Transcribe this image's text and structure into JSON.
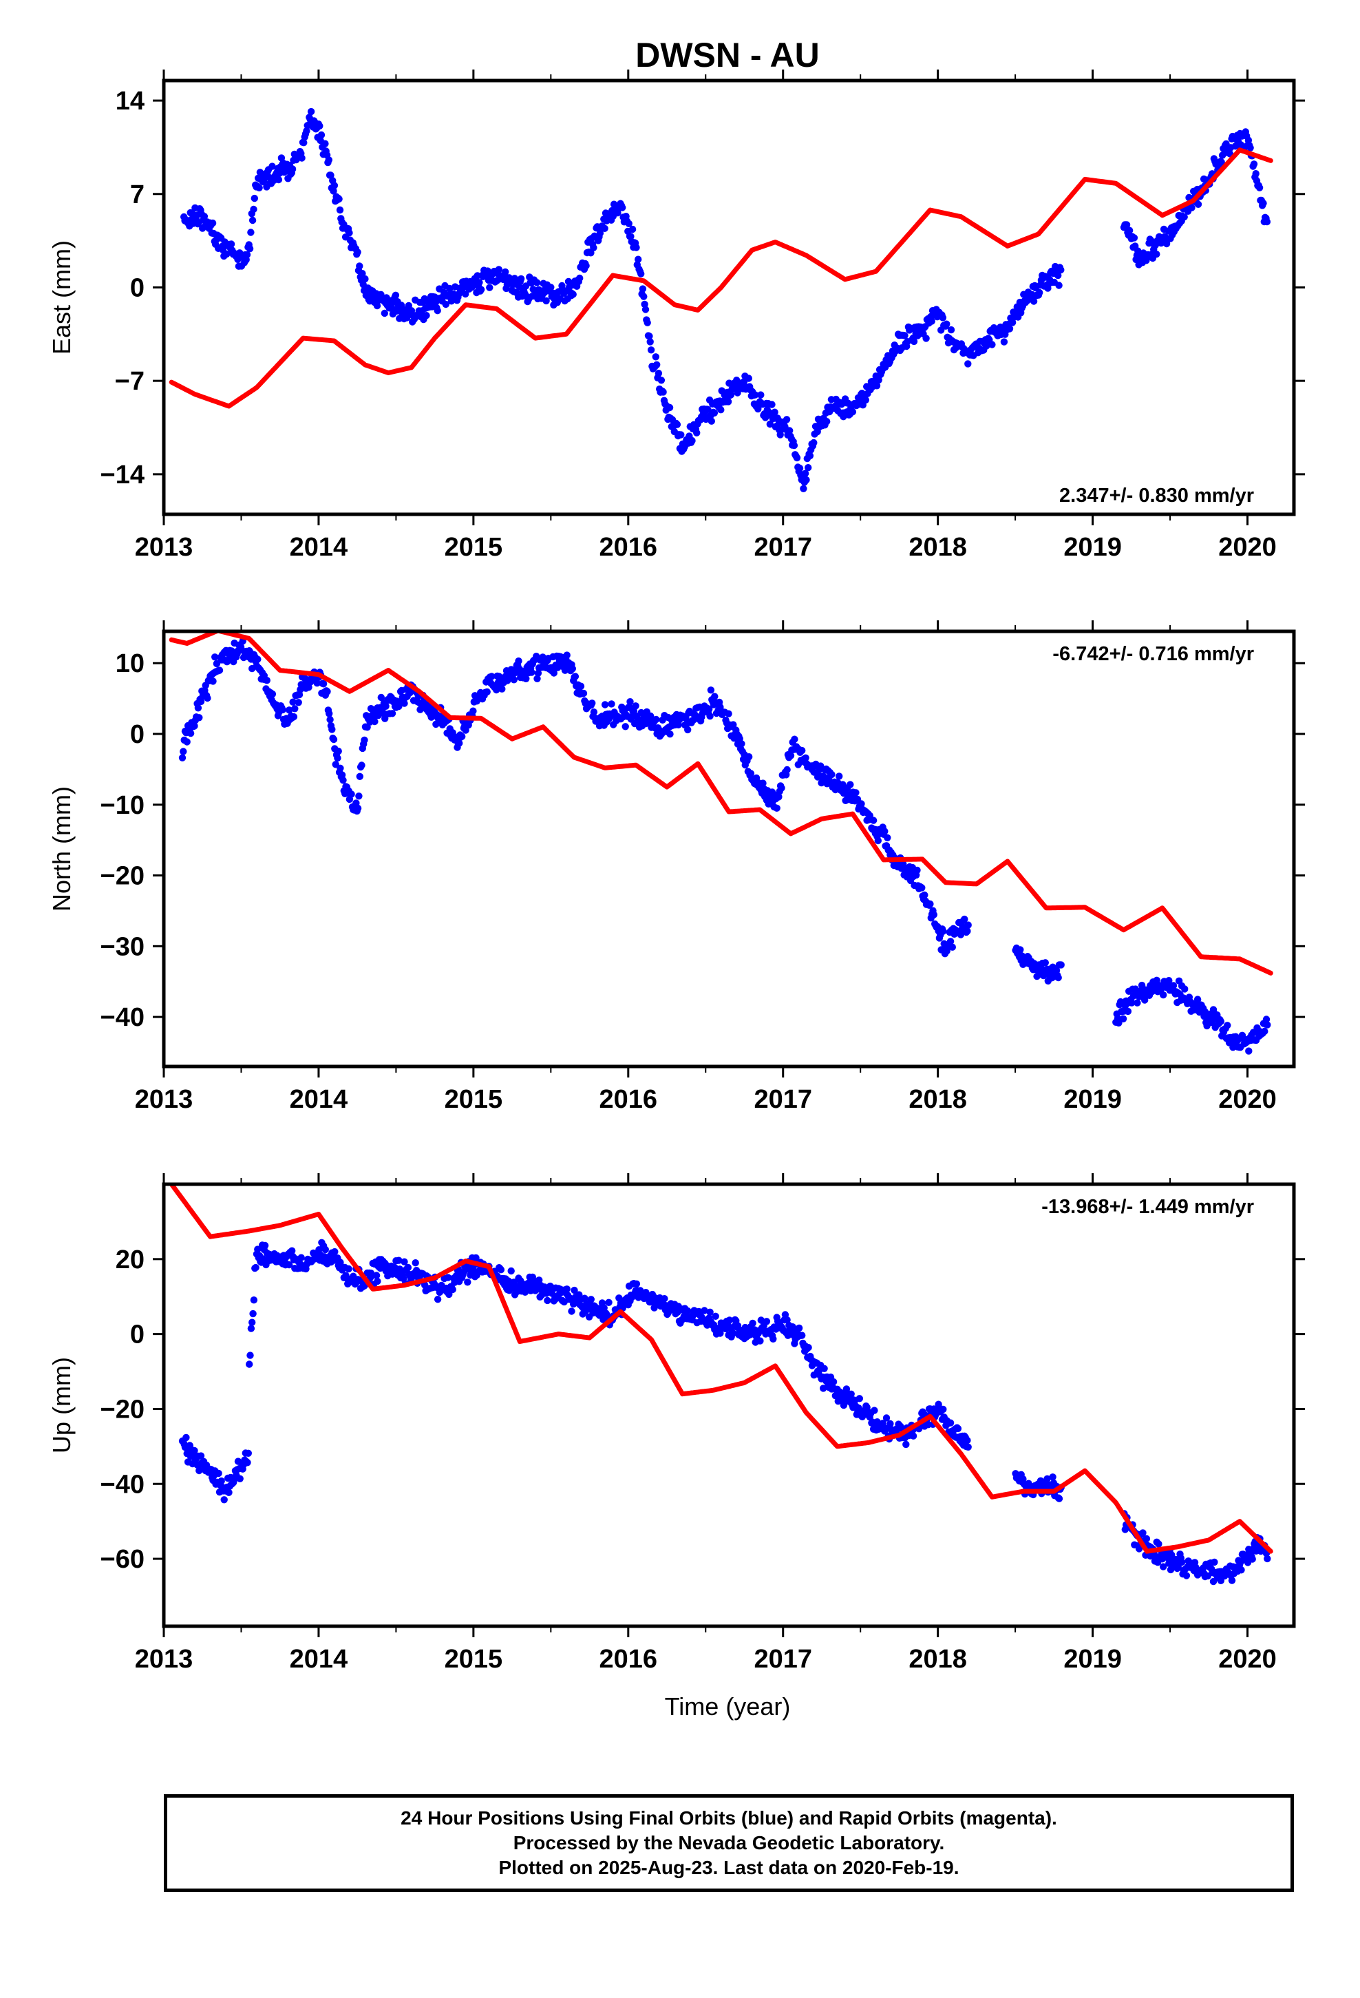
{
  "title": "DWSN - AU",
  "xlabel": "Time (year)",
  "colors": {
    "points": "#0000ff",
    "model": "#ff0000",
    "frame": "#000000"
  },
  "footer": {
    "line1": "24 Hour Positions Using Final Orbits (blue) and Rapid Orbits (magenta).",
    "line2": "Processed by the Nevada Geodetic Laboratory.",
    "line3": "Plotted on 2025-Aug-23. Last data on 2020-Feb-19."
  },
  "chart_data": [
    {
      "type": "scatter",
      "ylabel": "East (mm)",
      "rate_label": "2.347+/- 0.830 mm/yr",
      "rate_position": "bottom-right",
      "xlim": [
        2013.0,
        2020.3
      ],
      "ylim": [
        -17,
        15.5
      ],
      "xticks": [
        "2013",
        "2014",
        "2015",
        "2016",
        "2017",
        "2018",
        "2019",
        "2020"
      ],
      "yticks": [
        "14",
        "7",
        "0",
        "−7",
        "−14"
      ],
      "ytick_values": [
        14,
        7,
        0,
        -7,
        -14
      ],
      "series": [
        {
          "kind": "points",
          "x": [
            2013.13,
            2013.2,
            2013.3,
            2013.4,
            2013.5,
            2013.55,
            2013.6,
            2013.7,
            2013.8,
            2013.9,
            2013.95,
            2014.05,
            2014.1,
            2014.2,
            2014.3,
            2014.4,
            2014.6,
            2014.8,
            2014.95,
            2015.1,
            2015.3,
            2015.5,
            2015.65,
            2015.75,
            2015.85,
            2015.95,
            2016.05,
            2016.15,
            2016.25,
            2016.35,
            2016.45,
            2016.55,
            2016.65,
            2016.75,
            2016.85,
            2016.95,
            2017.05,
            2017.13,
            2017.2,
            2017.3,
            2017.45,
            2017.6,
            2017.75,
            2017.9,
            2018.0,
            2018.1,
            2018.2,
            2018.45,
            2018.55,
            2018.65,
            2018.75,
            2018.8,
            2019.2,
            2019.3,
            2019.4,
            2019.5,
            2019.6,
            2019.7,
            2019.8,
            2019.9,
            2020.0,
            2020.05,
            2020.1,
            2020.13
          ],
          "y": [
            5,
            5.5,
            4.5,
            3,
            2,
            3,
            8,
            8.5,
            9,
            10.5,
            13,
            10,
            7,
            4,
            0,
            -1,
            -2,
            -1,
            0,
            1,
            0,
            -0.5,
            0,
            3,
            5,
            6,
            3,
            -5,
            -9,
            -12,
            -10,
            -9,
            -8,
            -7,
            -9,
            -10,
            -11,
            -15,
            -11,
            -9,
            -9,
            -7,
            -4,
            -3,
            -2,
            -4,
            -5,
            -3,
            -1,
            0,
            1,
            1,
            5,
            2,
            3,
            4,
            6,
            7,
            9,
            11,
            11,
            9,
            6,
            4
          ]
        },
        {
          "kind": "line",
          "x": [
            2013.05,
            2013.2,
            2013.42,
            2013.6,
            2013.9,
            2014.1,
            2014.3,
            2014.45,
            2014.6,
            2014.75,
            2014.95,
            2015.15,
            2015.4,
            2015.6,
            2015.9,
            2016.1,
            2016.3,
            2016.45,
            2016.6,
            2016.8,
            2016.95,
            2017.15,
            2017.4,
            2017.6,
            2017.95,
            2018.15,
            2018.45,
            2018.65,
            2018.95,
            2019.15,
            2019.45,
            2019.65,
            2019.95,
            2020.15
          ],
          "y": [
            -7.1,
            -8,
            -8.9,
            -7.5,
            -3.8,
            -4,
            -5.8,
            -6.4,
            -6,
            -3.8,
            -1.3,
            -1.6,
            -3.8,
            -3.5,
            0.9,
            0.5,
            -1.3,
            -1.7,
            0,
            2.8,
            3.4,
            2.4,
            0.6,
            1.2,
            5.8,
            5.3,
            3.1,
            4,
            8.1,
            7.8,
            5.4,
            6.5,
            10.3,
            9.5
          ]
        }
      ]
    },
    {
      "type": "scatter",
      "ylabel": "North (mm)",
      "rate_label": "-6.742+/- 0.716 mm/yr",
      "rate_position": "top-right",
      "xlim": [
        2013.0,
        2020.3
      ],
      "ylim": [
        -47,
        14.5
      ],
      "xticks": [
        "2013",
        "2014",
        "2015",
        "2016",
        "2017",
        "2018",
        "2019",
        "2020"
      ],
      "yticks": [
        "10",
        "0",
        "−10",
        "−20",
        "−30",
        "−40"
      ],
      "ytick_values": [
        10,
        0,
        -10,
        -20,
        -30,
        -40
      ],
      "series": [
        {
          "kind": "points",
          "x": [
            2013.12,
            2013.2,
            2013.3,
            2013.4,
            2013.5,
            2013.6,
            2013.7,
            2013.8,
            2013.9,
            2014.0,
            2014.05,
            2014.1,
            2014.15,
            2014.2,
            2014.25,
            2014.3,
            2014.45,
            2014.6,
            2014.7,
            2014.8,
            2014.9,
            2015.0,
            2015.1,
            2015.3,
            2015.5,
            2015.6,
            2015.65,
            2015.8,
            2016.0,
            2016.2,
            2016.4,
            2016.55,
            2016.7,
            2016.8,
            2016.95,
            2017.05,
            2017.2,
            2017.35,
            2017.5,
            2017.65,
            2017.75,
            2017.85,
            2017.95,
            2018.05,
            2018.1,
            2018.2,
            2018.5,
            2018.7,
            2018.8,
            2019.15,
            2019.25,
            2019.4,
            2019.5,
            2019.6,
            2019.7,
            2019.8,
            2019.9,
            2020.0,
            2020.1,
            2020.13
          ],
          "y": [
            -2,
            2,
            8,
            11,
            12,
            10,
            5,
            2,
            7,
            8,
            6,
            -2,
            -6,
            -9,
            -11,
            2,
            4,
            6,
            4,
            2,
            -1,
            4,
            7,
            9,
            10,
            10,
            8,
            2,
            3,
            1,
            2,
            5,
            0,
            -6,
            -10,
            -2,
            -5,
            -7,
            -10,
            -15,
            -18,
            -20,
            -25,
            -30,
            -28,
            -27,
            -31,
            -34,
            -33,
            -40,
            -37,
            -36,
            -36,
            -37,
            -39,
            -41,
            -43,
            -44,
            -42,
            -41
          ]
        },
        {
          "kind": "line",
          "x": [
            2013.05,
            2013.15,
            2013.35,
            2013.55,
            2013.75,
            2014.0,
            2014.2,
            2014.45,
            2014.65,
            2014.85,
            2015.05,
            2015.25,
            2015.45,
            2015.65,
            2015.85,
            2016.05,
            2016.25,
            2016.45,
            2016.65,
            2016.85,
            2017.05,
            2017.25,
            2017.45,
            2017.65,
            2017.9,
            2018.05,
            2018.25,
            2018.45,
            2018.7,
            2018.95,
            2019.2,
            2019.45,
            2019.7,
            2019.95,
            2020.15
          ],
          "y": [
            13.3,
            12.8,
            14.6,
            13.5,
            9,
            8.4,
            6,
            9,
            6,
            2.3,
            2.2,
            -0.7,
            1,
            -3.3,
            -4.8,
            -4.4,
            -7.5,
            -4.2,
            -11,
            -10.7,
            -14.1,
            -12,
            -11.3,
            -17.8,
            -17.7,
            -21,
            -21.2,
            -18,
            -24.6,
            -24.5,
            -27.7,
            -24.6,
            -31.5,
            -31.8,
            -33.8
          ]
        }
      ]
    },
    {
      "type": "scatter",
      "ylabel": "Up (mm)",
      "rate_label": "-13.968+/- 1.449 mm/yr",
      "rate_position": "top-right",
      "xlim": [
        2013.0,
        2020.3
      ],
      "ylim": [
        -78,
        40
      ],
      "xticks": [
        "2013",
        "2014",
        "2015",
        "2016",
        "2017",
        "2018",
        "2019",
        "2020"
      ],
      "yticks": [
        "20",
        "0",
        "−20",
        "−40",
        "−60"
      ],
      "ytick_values": [
        20,
        0,
        -20,
        -40,
        -60
      ],
      "series": [
        {
          "kind": "points",
          "x": [
            2013.12,
            2013.2,
            2013.3,
            2013.4,
            2013.5,
            2013.55,
            2013.55,
            2013.6,
            2013.7,
            2013.8,
            2013.9,
            2014.0,
            2014.1,
            2014.2,
            2014.3,
            2014.4,
            2014.6,
            2014.8,
            2015.0,
            2015.2,
            2015.4,
            2015.6,
            2015.75,
            2015.9,
            2016.05,
            2016.2,
            2016.4,
            2016.6,
            2016.8,
            2017.0,
            2017.1,
            2017.2,
            2017.35,
            2017.5,
            2017.65,
            2017.8,
            2017.9,
            2018.0,
            2018.1,
            2018.2,
            2018.5,
            2018.6,
            2018.75,
            2018.8,
            2019.2,
            2019.3,
            2019.4,
            2019.5,
            2019.6,
            2019.7,
            2019.8,
            2019.9,
            2020.0,
            2020.05,
            2020.13
          ],
          "y": [
            -30,
            -33,
            -37,
            -42,
            -35,
            -33,
            -8,
            22,
            20,
            20,
            18,
            22,
            20,
            15,
            14,
            18,
            16,
            12,
            18,
            15,
            12,
            10,
            7,
            5,
            12,
            8,
            5,
            2,
            0,
            2,
            0,
            -8,
            -15,
            -20,
            -25,
            -28,
            -22,
            -20,
            -26,
            -30,
            -38,
            -42,
            -40,
            -44,
            -50,
            -55,
            -58,
            -60,
            -62,
            -63,
            -64,
            -63,
            -60,
            -57,
            -58
          ]
        },
        {
          "kind": "line",
          "x": [
            2013.05,
            2013.3,
            2013.55,
            2013.75,
            2014.0,
            2014.15,
            2014.35,
            2014.55,
            2014.75,
            2014.95,
            2015.1,
            2015.3,
            2015.55,
            2015.75,
            2015.95,
            2016.15,
            2016.35,
            2016.55,
            2016.75,
            2016.95,
            2017.15,
            2017.35,
            2017.55,
            2017.75,
            2017.95,
            2018.15,
            2018.35,
            2018.55,
            2018.75,
            2018.95,
            2019.15,
            2019.35,
            2019.55,
            2019.75,
            2019.95,
            2020.15
          ],
          "y": [
            40,
            26,
            27.5,
            29,
            32,
            23,
            12,
            13,
            15,
            19.5,
            18,
            -2,
            0,
            -1,
            6,
            -1.5,
            -16,
            -15,
            -13,
            -8.5,
            -21,
            -30,
            -29,
            -27,
            -22,
            -32,
            -43.5,
            -42,
            -42,
            -36.5,
            -45,
            -58,
            -56.8,
            -55,
            -50,
            -58
          ]
        }
      ]
    }
  ]
}
